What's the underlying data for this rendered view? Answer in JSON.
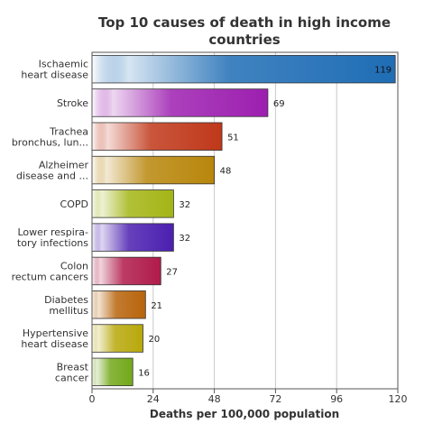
{
  "chart_data": {
    "type": "bar",
    "orientation": "horizontal",
    "title_lines": [
      "Top 10 causes of death in high income",
      "countries"
    ],
    "xlabel": "Deaths per 100,000 population",
    "ylabel": "",
    "xlim": [
      0,
      120
    ],
    "x_ticks": [
      "0",
      "24",
      "48",
      "72",
      "96",
      "120"
    ],
    "grid": "vertical",
    "legend": "none",
    "categories": [
      [
        "Ischaemic",
        "heart disease"
      ],
      [
        "Stroke"
      ],
      [
        "Trachea",
        "bronchus, lun..."
      ],
      [
        "Alzheimer",
        "disease and ..."
      ],
      [
        "COPD"
      ],
      [
        "Lower respira-",
        "tory infections"
      ],
      [
        "Colon",
        "rectum cancers"
      ],
      [
        "Diabetes",
        "mellitus"
      ],
      [
        "Hypertensive",
        "heart disease"
      ],
      [
        "Breast",
        "cancer"
      ]
    ],
    "values": [
      119,
      69,
      51,
      48,
      32,
      32,
      27,
      21,
      20,
      16
    ],
    "value_labels": [
      "119",
      "69",
      "51",
      "48",
      "32",
      "32",
      "27",
      "21",
      "20",
      "16"
    ],
    "colors": [
      "#1f6db5",
      "#9d1fb0",
      "#c0381a",
      "#b8860b",
      "#a3b515",
      "#4b1fb0",
      "#b01a4a",
      "#b8640b",
      "#b8a80b",
      "#73a81a"
    ]
  }
}
